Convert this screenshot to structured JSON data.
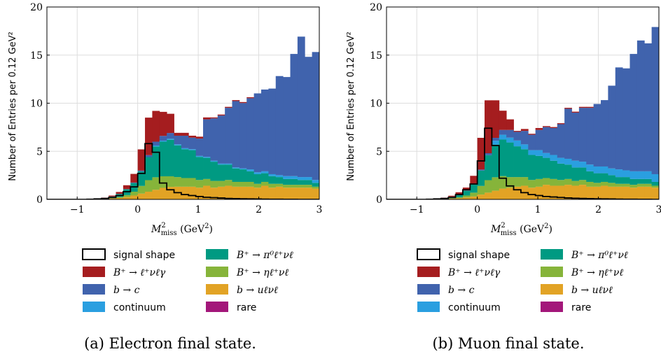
{
  "legend": [
    {
      "key": "signal",
      "label": "signal shape",
      "color": "#000000",
      "math": false,
      "outline": true
    },
    {
      "key": "pi0",
      "label": "B⁺ → π⁰ℓ⁺νℓ",
      "color": "#009a82",
      "math": true
    },
    {
      "key": "rad",
      "label": "B⁺ → ℓ⁺νℓγ",
      "color": "#a51d1f",
      "math": true
    },
    {
      "key": "eta",
      "label": "B⁺ → ηℓ⁺νℓ",
      "color": "#86b43a",
      "math": true
    },
    {
      "key": "btoc",
      "label": "b → c",
      "color": "#4063ad",
      "math": true
    },
    {
      "key": "bulnu",
      "label": "b → uℓνℓ",
      "color": "#e2a325",
      "math": true
    },
    {
      "key": "cont",
      "label": "continuum",
      "color": "#2a9fe0",
      "math": false
    },
    {
      "key": "rare",
      "label": "rare",
      "color": "#a3177a",
      "math": false
    }
  ],
  "chart_data": [
    {
      "type": "histogram",
      "stacked": true,
      "caption": "(a) Electron final state.",
      "xlabel": "M²miss  (GeV²)",
      "ylabel": "Number of Entries per 0.12 GeV²",
      "xlim": [
        -1.5,
        3.0
      ],
      "ylim": [
        0,
        20
      ],
      "xticks": [
        "−1",
        "0",
        "1",
        "2",
        "3"
      ],
      "yticks": [
        "0",
        "5",
        "10",
        "15",
        "20"
      ],
      "grid": true,
      "bin_width": 0.12,
      "bin_start": -1.56,
      "series": [
        {
          "key": "rare",
          "values": [
            0,
            0,
            0,
            0,
            0,
            0,
            0,
            0,
            0,
            0,
            0,
            0,
            0,
            0,
            0,
            0,
            0,
            0,
            0.02,
            0.02,
            0.02,
            0.02,
            0.02,
            0.02,
            0.02,
            0.02,
            0.02,
            0.02,
            0.02,
            0.02,
            0.02,
            0.02,
            0.02,
            0.02,
            0.02,
            0.02,
            0.02,
            0.02
          ]
        },
        {
          "key": "bulnu",
          "values": [
            0,
            0,
            0,
            0,
            0,
            0,
            0,
            0.02,
            0.05,
            0.1,
            0.15,
            0.25,
            0.4,
            0.6,
            0.8,
            1.0,
            1.2,
            1.3,
            1.3,
            1.3,
            1.3,
            1.2,
            1.4,
            1.2,
            1.3,
            1.4,
            1.3,
            1.3,
            1.3,
            1.2,
            1.4,
            1.2,
            1.3,
            1.2,
            1.2,
            1.2,
            1.2,
            1.1
          ]
        },
        {
          "key": "eta",
          "values": [
            0,
            0,
            0,
            0,
            0,
            0,
            0,
            0.01,
            0.02,
            0.04,
            0.1,
            0.2,
            0.4,
            0.8,
            1.2,
            1.3,
            1.2,
            1.1,
            1.0,
            0.9,
            0.9,
            0.8,
            0.7,
            0.7,
            0.6,
            0.6,
            0.5,
            0.5,
            0.5,
            0.4,
            0.4,
            0.4,
            0.3,
            0.3,
            0.3,
            0.3,
            0.3,
            0.2
          ]
        },
        {
          "key": "pi0",
          "values": [
            0,
            0,
            0,
            0,
            0,
            0,
            0,
            0.05,
            0.08,
            0.15,
            0.3,
            0.6,
            0.9,
            1.5,
            2.4,
            3.2,
            3.6,
            3.8,
            3.3,
            3.0,
            2.9,
            2.4,
            2.2,
            2.0,
            1.7,
            1.6,
            1.4,
            1.3,
            1.1,
            1.0,
            0.9,
            0.8,
            0.7,
            0.6,
            0.6,
            0.5,
            0.5,
            0.4
          ]
        },
        {
          "key": "cont",
          "values": [
            0,
            0,
            0,
            0,
            0,
            0,
            0,
            0,
            0,
            0,
            0,
            0,
            0,
            0,
            0,
            0.1,
            0.1,
            0.1,
            0.1,
            0.1,
            0.1,
            0.1,
            0.1,
            0.1,
            0.1,
            0.1,
            0.1,
            0.1,
            0.2,
            0.2,
            0.2,
            0.2,
            0.2,
            0.3,
            0.3,
            0.3,
            0.3,
            0.3
          ]
        },
        {
          "key": "btoc",
          "values": [
            0,
            0,
            0,
            0,
            0,
            0,
            0,
            0,
            0,
            0.01,
            0.02,
            0.02,
            0.05,
            0.1,
            0.2,
            0.4,
            0.5,
            0.6,
            0.9,
            1.3,
            1.2,
            1.8,
            3.9,
            4.4,
            5.0,
            5.8,
            6.9,
            6.8,
            7.4,
            8.2,
            8.5,
            8.9,
            10.3,
            10.3,
            12.7,
            14.6,
            12.5,
            13.3
          ]
        },
        {
          "key": "rad",
          "values": [
            0,
            0,
            0,
            0,
            0,
            0,
            0,
            0,
            0.03,
            0.1,
            0.2,
            0.4,
            0.9,
            2.2,
            3.9,
            3.2,
            2.5,
            2.0,
            0.3,
            0.3,
            0.2,
            0.2,
            0.2,
            0.1,
            0.1,
            0.1,
            0.1,
            0.1,
            0.1,
            0,
            0,
            0,
            0,
            0,
            0,
            0,
            0,
            0
          ]
        },
        {
          "key": "signal",
          "values": [
            0,
            0,
            0,
            0,
            0,
            0,
            0.02,
            0.05,
            0.1,
            0.2,
            0.4,
            0.8,
            1.3,
            2.7,
            5.8,
            4.9,
            1.7,
            1.0,
            0.7,
            0.5,
            0.4,
            0.3,
            0.22,
            0.18,
            0.14,
            0.1,
            0.08,
            0.06,
            0.05,
            0.04,
            0.03,
            0.02,
            0.02,
            0.01,
            0.01,
            0,
            0,
            0
          ]
        }
      ]
    },
    {
      "type": "histogram",
      "stacked": true,
      "caption": "(b) Muon final state.",
      "xlabel": "M²miss  (GeV²)",
      "ylabel": "Number of Entries per 0.12 GeV²",
      "xlim": [
        -1.5,
        3.0
      ],
      "ylim": [
        0,
        20
      ],
      "xticks": [
        "−1",
        "0",
        "1",
        "2",
        "3"
      ],
      "yticks": [
        "0",
        "5",
        "10",
        "15",
        "20"
      ],
      "grid": true,
      "bin_width": 0.12,
      "bin_start": -1.56,
      "series": [
        {
          "key": "rare",
          "values": [
            0,
            0,
            0,
            0,
            0,
            0,
            0,
            0,
            0,
            0,
            0,
            0,
            0,
            0,
            0,
            0,
            0.02,
            0.02,
            0.02,
            0.02,
            0.02,
            0.02,
            0.02,
            0.02,
            0.02,
            0.02,
            0.02,
            0.02,
            0.02,
            0.02,
            0.02,
            0.02,
            0.02,
            0.02,
            0.02,
            0.02,
            0.02,
            0.02
          ]
        },
        {
          "key": "bulnu",
          "values": [
            0,
            0,
            0,
            0,
            0,
            0,
            0,
            0.02,
            0.04,
            0.08,
            0.12,
            0.2,
            0.3,
            0.5,
            0.7,
            0.9,
            1.1,
            1.2,
            1.3,
            1.4,
            1.2,
            1.3,
            1.5,
            1.4,
            1.4,
            1.5,
            1.4,
            1.5,
            1.3,
            1.3,
            1.4,
            1.3,
            1.3,
            1.3,
            1.2,
            1.3,
            1.3,
            1.2
          ]
        },
        {
          "key": "eta",
          "values": [
            0,
            0,
            0,
            0,
            0,
            0,
            0,
            0.01,
            0.02,
            0.05,
            0.1,
            0.2,
            0.4,
            0.9,
            1.3,
            1.4,
            1.3,
            1.1,
            1.0,
            0.9,
            0.8,
            0.8,
            0.7,
            0.7,
            0.6,
            0.6,
            0.5,
            0.5,
            0.5,
            0.4,
            0.4,
            0.4,
            0.3,
            0.3,
            0.3,
            0.3,
            0.3,
            0.2
          ]
        },
        {
          "key": "pi0",
          "values": [
            0,
            0,
            0,
            0,
            0,
            0,
            0,
            0.05,
            0.08,
            0.15,
            0.3,
            0.5,
            0.9,
            1.6,
            2.6,
            3.4,
            3.8,
            3.6,
            3.2,
            2.9,
            2.6,
            2.4,
            2.1,
            1.9,
            1.7,
            1.5,
            1.4,
            1.3,
            1.1,
            1.0,
            0.9,
            0.8,
            0.7,
            0.7,
            0.6,
            0.5,
            0.5,
            0.4
          ]
        },
        {
          "key": "cont",
          "values": [
            0,
            0,
            0,
            0,
            0,
            0,
            0,
            0,
            0,
            0,
            0,
            0,
            0,
            0,
            0,
            0.4,
            0.5,
            0.5,
            0.6,
            0.5,
            0.5,
            0.6,
            0.5,
            0.6,
            0.6,
            0.6,
            0.7,
            0.6,
            0.7,
            0.7,
            0.7,
            0.7,
            0.8,
            0.7,
            0.8,
            0.8,
            0.8,
            0.8
          ]
        },
        {
          "key": "btoc",
          "values": [
            0,
            0,
            0,
            0,
            0,
            0,
            0,
            0,
            0,
            0,
            0.02,
            0.03,
            0.05,
            0.1,
            0.2,
            0.3,
            0.5,
            0.8,
            0.9,
            1.4,
            1.6,
            2.1,
            2.7,
            2.8,
            3.5,
            5.2,
            5.0,
            5.6,
            5.9,
            6.5,
            6.9,
            8.6,
            10.6,
            10.6,
            12.2,
            13.6,
            13.3,
            15.3
          ]
        },
        {
          "key": "rad",
          "values": [
            0,
            0,
            0,
            0,
            0,
            0,
            0,
            0,
            0.03,
            0.1,
            0.2,
            0.3,
            0.8,
            3.3,
            5.5,
            3.9,
            2.0,
            1.1,
            0.1,
            0.2,
            0.1,
            0.2,
            0.1,
            0.1,
            0.1,
            0.1,
            0.1,
            0.1,
            0.1,
            0,
            0,
            0,
            0,
            0,
            0,
            0,
            0,
            0
          ]
        },
        {
          "key": "signal",
          "values": [
            0,
            0,
            0,
            0,
            0,
            0,
            0.02,
            0.05,
            0.1,
            0.2,
            0.5,
            1.0,
            1.6,
            4.0,
            7.4,
            5.6,
            2.2,
            1.4,
            1.0,
            0.7,
            0.5,
            0.4,
            0.3,
            0.25,
            0.2,
            0.15,
            0.12,
            0.1,
            0.08,
            0.06,
            0.05,
            0.04,
            0.03,
            0.02,
            0.02,
            0.01,
            0.01,
            0
          ]
        }
      ]
    }
  ]
}
